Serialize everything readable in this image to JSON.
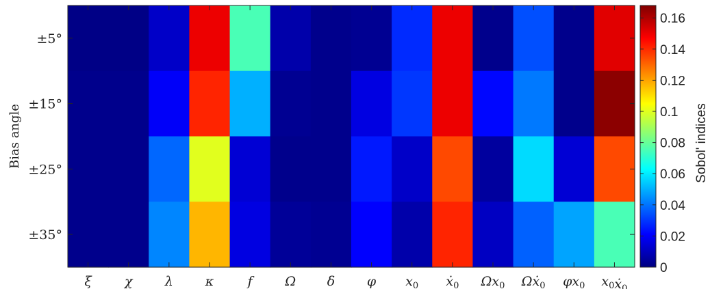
{
  "chart_data": {
    "type": "heatmap",
    "title": "",
    "xlabel": "",
    "ylabel": "Bias angle",
    "colorbar_label": "Sobol' indices",
    "colormap": "jet",
    "clim": [
      0,
      0.168
    ],
    "colorbar_ticks": [
      "0",
      "0.02",
      "0.04",
      "0.06",
      "0.08",
      "0.1",
      "0.12",
      "0.14",
      "0.16"
    ],
    "colorbar_tick_values": [
      0,
      0.02,
      0.04,
      0.06,
      0.08,
      0.1,
      0.12,
      0.14,
      0.16
    ],
    "x_categories": [
      {
        "base": "ξ",
        "sub": ""
      },
      {
        "base": "χ",
        "sub": ""
      },
      {
        "base": "λ",
        "sub": ""
      },
      {
        "base": "κ",
        "sub": ""
      },
      {
        "base": "f",
        "sub": ""
      },
      {
        "base": "Ω",
        "sub": ""
      },
      {
        "base": "δ",
        "sub": ""
      },
      {
        "base": "φ",
        "sub": ""
      },
      {
        "base": "x",
        "sub": "0"
      },
      {
        "base": "ẋ",
        "sub": "0"
      },
      {
        "base": "Ωx",
        "sub": "0"
      },
      {
        "base": "Ωẋ",
        "sub": "0"
      },
      {
        "base": "φx",
        "sub": "0"
      },
      {
        "base": "x",
        "sub": "0",
        "base2": "ẋ",
        "sub2": "0"
      }
    ],
    "y_categories": [
      "±5°",
      "±15°",
      "±25°",
      "±35°"
    ],
    "values": [
      [
        0.001,
        0.001,
        0.012,
        0.15,
        0.075,
        0.007,
        0.002,
        0.003,
        0.028,
        0.15,
        0.002,
        0.034,
        0.002,
        0.152
      ],
      [
        0.002,
        0.002,
        0.02,
        0.141,
        0.05,
        0.003,
        0.002,
        0.016,
        0.03,
        0.15,
        0.022,
        0.041,
        0.002,
        0.166
      ],
      [
        0.002,
        0.002,
        0.038,
        0.1,
        0.014,
        0.002,
        0.002,
        0.025,
        0.012,
        0.135,
        0.005,
        0.057,
        0.014,
        0.135
      ],
      [
        0.002,
        0.002,
        0.043,
        0.117,
        0.016,
        0.004,
        0.003,
        0.021,
        0.007,
        0.141,
        0.011,
        0.037,
        0.048,
        0.075
      ]
    ]
  }
}
